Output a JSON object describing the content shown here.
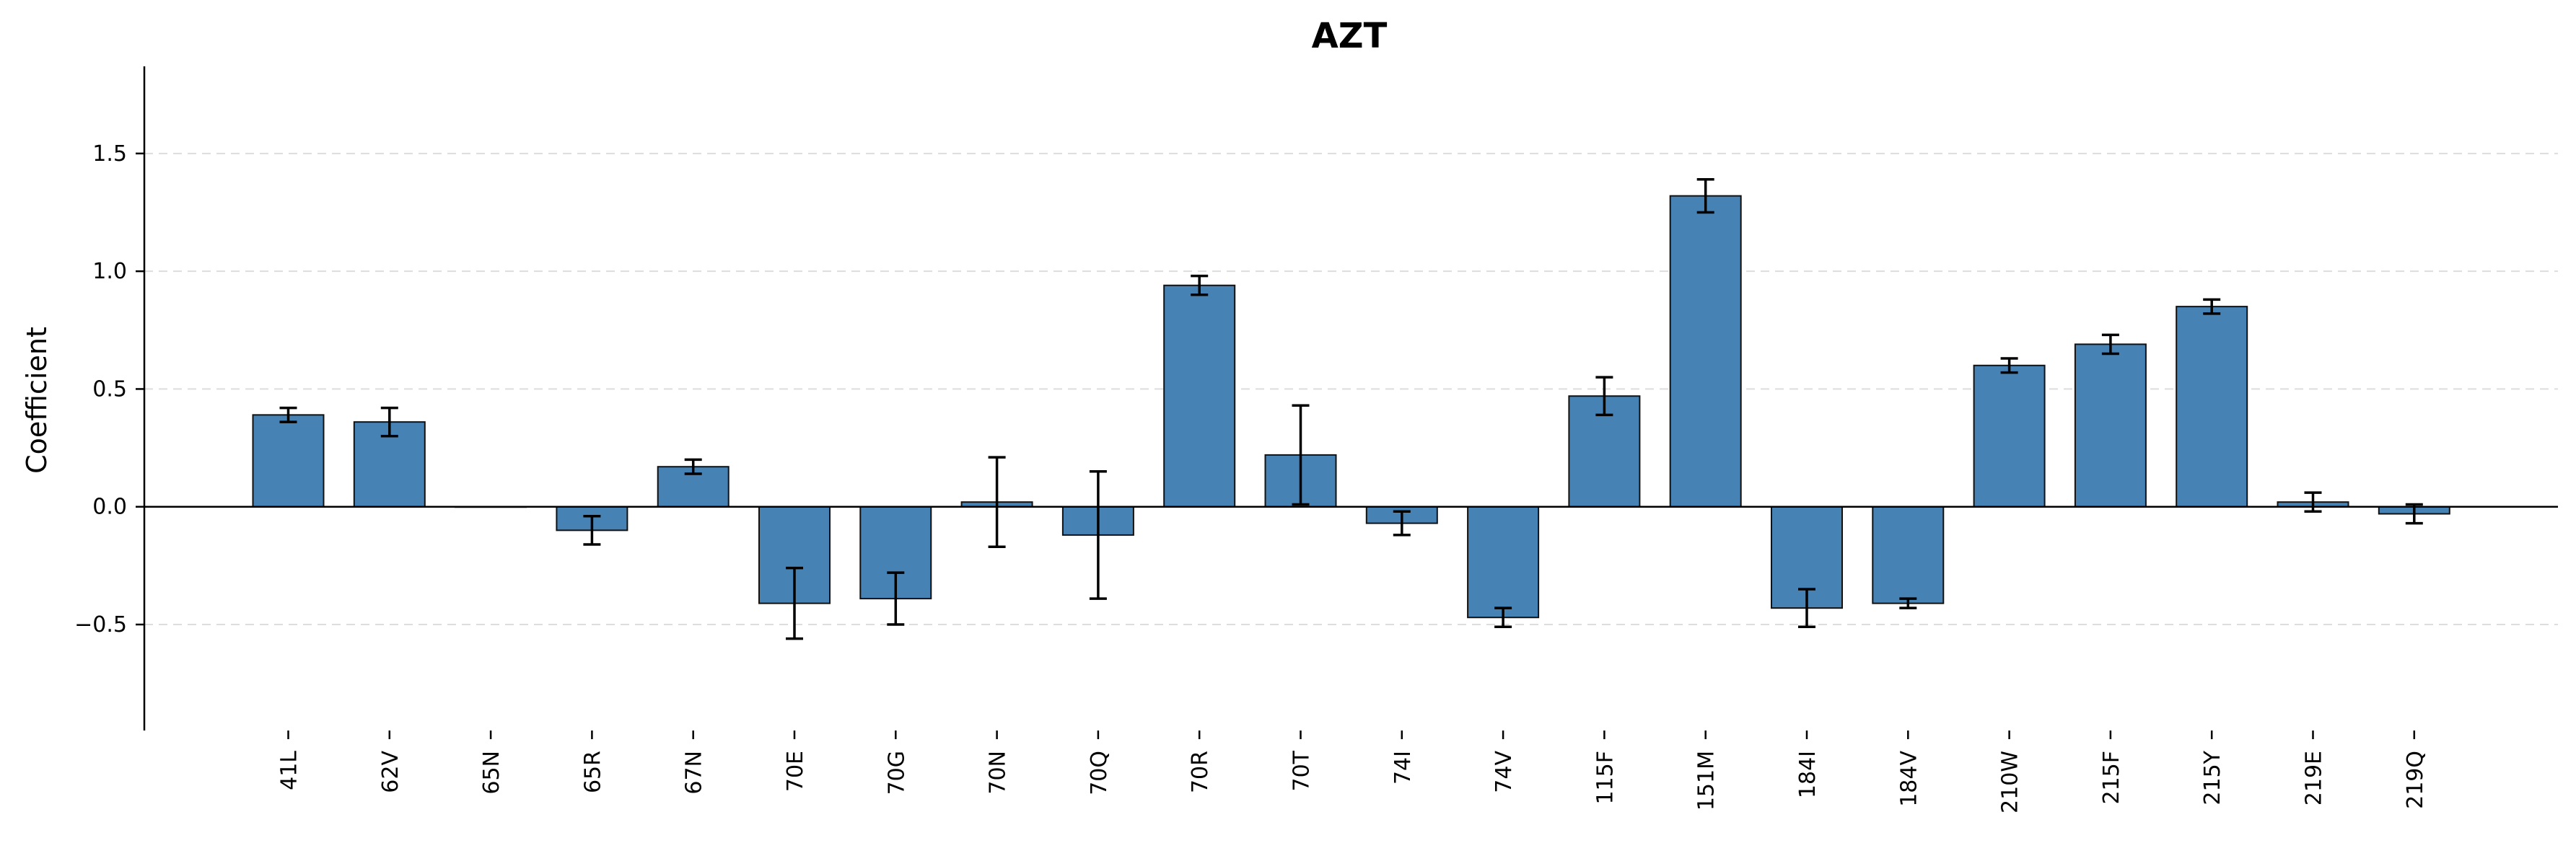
{
  "chart_data": {
    "type": "bar",
    "title": "AZT",
    "xlabel": "",
    "ylabel": "Coefficient",
    "categories": [
      "41L",
      "62V",
      "65N",
      "65R",
      "67N",
      "70E",
      "70G",
      "70N",
      "70Q",
      "70R",
      "70T",
      "74I",
      "74V",
      "115F",
      "151M",
      "184I",
      "184V",
      "210W",
      "215F",
      "215Y",
      "219E",
      "219Q"
    ],
    "values": [
      0.39,
      0.36,
      0.0,
      -0.1,
      0.17,
      -0.41,
      -0.39,
      0.02,
      -0.12,
      0.94,
      0.22,
      -0.07,
      -0.47,
      0.47,
      1.32,
      -0.43,
      -0.41,
      0.6,
      0.69,
      0.85,
      0.02,
      -0.03
    ],
    "errors": [
      0.03,
      0.06,
      0.0,
      0.06,
      0.03,
      0.15,
      0.11,
      0.19,
      0.27,
      0.04,
      0.21,
      0.05,
      0.04,
      0.08,
      0.07,
      0.08,
      0.02,
      0.03,
      0.04,
      0.03,
      0.04,
      0.04
    ],
    "ylim": [
      -0.95,
      1.87
    ],
    "yticks": [
      -0.5,
      0.0,
      0.5,
      1.0,
      1.5
    ],
    "ytick_labels": [
      "−0.5",
      "0.0",
      "0.5",
      "1.0",
      "1.5"
    ],
    "grid": "y-dashed",
    "bar_color": "#4682b4",
    "edge_color": "#111111"
  }
}
